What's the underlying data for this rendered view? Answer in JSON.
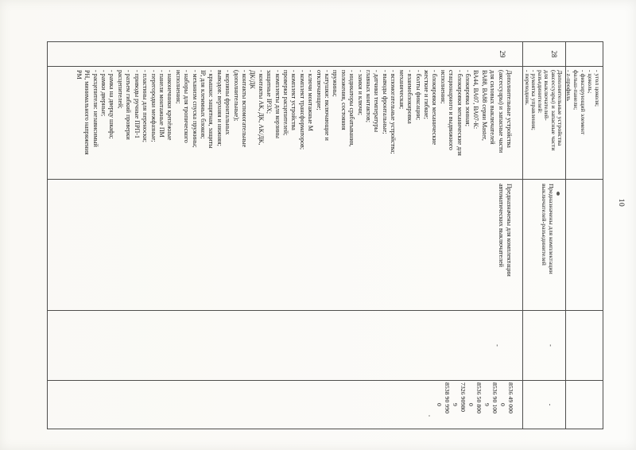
{
  "page": {
    "number": "10"
  },
  "colors": {
    "paper": "#fbfbf8",
    "ink": "#1a1a1a",
    "border": "#4e4e4c"
  },
  "table": {
    "rows": [
      {
        "row_id": "row-cont",
        "num": "",
        "name_lines": [
          "- угол цоколя;",
          "- цоколь;",
          "- фиксирующий элемент",
          "фальш-панели;",
          "- z-профиль"
        ],
        "purpose_lines": [],
        "doc_mark": "",
        "codes_mark": "",
        "codes": []
      },
      {
        "row_id": "row-28",
        "num": "28",
        "name_lines": [
          "Дополнительные устройства",
          "(аксессуары) и запасные части",
          "для выключателей-",
          "разъединителей:",
          "- рукоятка управления;",
          "- переходник."
        ],
        "purpose_lines": [
          "Предназначены для комплектации",
          "выключателей-разъединителей"
        ],
        "doc_mark": "-",
        "codes_mark": "-",
        "codes": []
      },
      {
        "row_id": "row-29",
        "num": "29",
        "name_lines": [
          "Дополнительные устройства",
          "(аксессуары) и запасные части",
          "для силовых выключателей",
          "ВА88, ВА88 серии Master,",
          "ВА44, ВА07, ВА07-К:",
          "- блокировка зонная;",
          "- блокировки механические для",
          "стационарного и выдвижного",
          "исполнения;",
          "- блокировки механические",
          "жесткие и гибкие;",
          "- болты фиксации;",
          "- взаимоблокировка",
          "механическая;",
          "- вспомогательные устройства;",
          "- выводы фронтальные;",
          "- датчики температуры",
          "главных контактов;",
          "- замки и ключи;",
          "- индикаторы срабатывания,",
          "положения, состояния",
          "пружины;",
          "- катушки: включающие и",
          "отключающие;",
          "- ключи монтажные М",
          "- комплект трансформаторов;",
          "- комплект устройства",
          "проверки расцепителей;",
          "- комплекты для корзины",
          "защитные IP3X;",
          "- контакты АК, ДК, АК/ДК,",
          "ДК/ДК",
          "- контакты вспомогательные",
          "(дополнительные);",
          "- корзины фронтальных",
          "выводов: верхняя и нижняя;",
          "- крышки: защитная, защиты",
          "IP, для клеммных блоков;",
          "- механизм спуска пружины;",
          "- наборы для тропического",
          "исполнения;",
          "- наконечники крепёжные",
          "- панели монтажные ПМ",
          "- перегородки межфазные;",
          "- пластины для переноски;",
          "- приводы ручные ПРП-1",
          "- разъем гибкий проверки",
          "расцепителей;",
          "- рамка на дверцу шкафа;",
          "- рамки дверные;",
          "- расцепители: независимый",
          "РН, минимального напряжения",
          "РМ"
        ],
        "purpose_lines": [
          "Предназначены для комплектации",
          "автоматических выключателей"
        ],
        "doc_mark": "-",
        "codes_mark": "",
        "codes": [
          {
            "value": "8536 49 000",
            "check": "0"
          },
          {
            "value": "8536 90 100",
            "check": "9"
          },
          {
            "value": "8536 50 800",
            "check": "0"
          },
          {
            "value": "7326 90980",
            "check": "9"
          },
          {
            "value": "8538 90 990",
            "check": "0"
          }
        ]
      }
    ]
  }
}
